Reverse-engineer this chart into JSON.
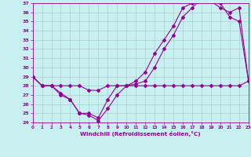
{
  "xlabel": "Windchill (Refroidissement éolien,°C)",
  "xlim": [
    0,
    23
  ],
  "ylim": [
    24,
    37
  ],
  "yticks": [
    24,
    25,
    26,
    27,
    28,
    29,
    30,
    31,
    32,
    33,
    34,
    35,
    36,
    37
  ],
  "xticks": [
    0,
    1,
    2,
    3,
    4,
    5,
    6,
    7,
    8,
    9,
    10,
    11,
    12,
    13,
    14,
    15,
    16,
    17,
    18,
    19,
    20,
    21,
    22,
    23
  ],
  "bg_color": "#c8f0f0",
  "line_color": "#990099",
  "grid_color": "#b0cccc",
  "curve1_x": [
    0,
    1,
    2,
    3,
    4,
    5,
    6,
    7,
    8,
    9,
    10,
    11,
    12,
    13,
    14,
    15,
    16,
    17,
    18,
    19,
    20,
    21,
    22,
    23
  ],
  "curve1_y": [
    29.0,
    28.0,
    28.0,
    27.2,
    26.5,
    25.0,
    24.8,
    24.2,
    25.5,
    27.0,
    28.0,
    28.2,
    28.5,
    30.0,
    32.0,
    33.5,
    35.5,
    36.5,
    37.5,
    37.2,
    36.5,
    36.0,
    36.5,
    28.5
  ],
  "curve2_x": [
    0,
    1,
    2,
    3,
    4,
    5,
    6,
    7,
    8,
    9,
    10,
    11,
    12,
    13,
    14,
    15,
    16,
    17,
    18,
    19,
    20,
    21,
    22,
    23
  ],
  "curve2_y": [
    29.0,
    28.0,
    28.0,
    27.0,
    26.5,
    25.0,
    25.0,
    24.5,
    26.5,
    28.0,
    28.0,
    28.5,
    29.5,
    31.5,
    33.0,
    34.5,
    36.5,
    37.0,
    37.5,
    37.5,
    37.0,
    35.5,
    35.0,
    28.5
  ],
  "curve3_x": [
    0,
    1,
    2,
    3,
    4,
    5,
    6,
    7,
    8,
    9,
    10,
    11,
    12,
    13,
    14,
    15,
    16,
    17,
    18,
    19,
    20,
    21,
    22,
    23
  ],
  "curve3_y": [
    29.0,
    28.0,
    28.0,
    28.0,
    28.0,
    28.0,
    27.5,
    27.5,
    28.0,
    28.0,
    28.0,
    28.0,
    28.0,
    28.0,
    28.0,
    28.0,
    28.0,
    28.0,
    28.0,
    28.0,
    28.0,
    28.0,
    28.0,
    28.5
  ]
}
